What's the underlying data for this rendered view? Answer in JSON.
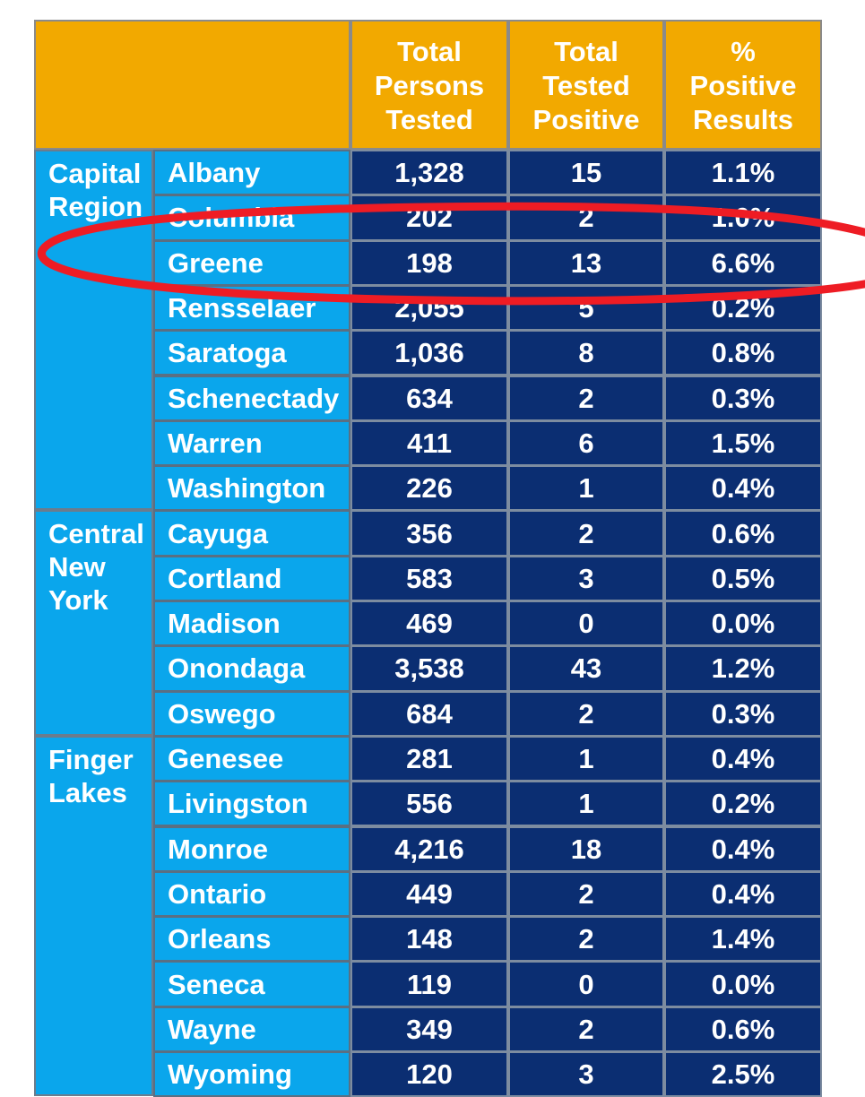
{
  "chart_data": {
    "type": "table",
    "columns": [
      "",
      "",
      "Total Persons Tested",
      "Total Tested Positive",
      "% Positive Results"
    ],
    "header_lines": [
      [
        "Total",
        "Persons",
        "Tested"
      ],
      [
        "Total",
        "Tested",
        "Positive"
      ],
      [
        "%",
        "Positive",
        "Results"
      ]
    ],
    "groups": [
      {
        "region_lines": [
          "Capital",
          "Region"
        ],
        "rows": [
          {
            "county": "Albany",
            "tested": "1,328",
            "positive": "15",
            "pct": "1.1%"
          },
          {
            "county": "Columbia",
            "tested": "202",
            "positive": "2",
            "pct": "1.0%"
          },
          {
            "county": "Greene",
            "tested": "198",
            "positive": "13",
            "pct": "6.6%"
          },
          {
            "county": "Rensselaer",
            "tested": "2,055",
            "positive": "5",
            "pct": "0.2%"
          },
          {
            "county": "Saratoga",
            "tested": "1,036",
            "positive": "8",
            "pct": "0.8%"
          },
          {
            "county": "Schenectady",
            "tested": "634",
            "positive": "2",
            "pct": "0.3%"
          },
          {
            "county": "Warren",
            "tested": "411",
            "positive": "6",
            "pct": "1.5%"
          },
          {
            "county": "Washington",
            "tested": "226",
            "positive": "1",
            "pct": "0.4%"
          }
        ]
      },
      {
        "region_lines": [
          "Central",
          "New",
          "York"
        ],
        "rows": [
          {
            "county": "Cayuga",
            "tested": "356",
            "positive": "2",
            "pct": "0.6%"
          },
          {
            "county": "Cortland",
            "tested": "583",
            "positive": "3",
            "pct": "0.5%"
          },
          {
            "county": "Madison",
            "tested": "469",
            "positive": "0",
            "pct": "0.0%"
          },
          {
            "county": "Onondaga",
            "tested": "3,538",
            "positive": "43",
            "pct": "1.2%"
          },
          {
            "county": "Oswego",
            "tested": "684",
            "positive": "2",
            "pct": "0.3%"
          }
        ]
      },
      {
        "region_lines": [
          "Finger",
          "Lakes"
        ],
        "rows": [
          {
            "county": "Genesee",
            "tested": "281",
            "positive": "1",
            "pct": "0.4%"
          },
          {
            "county": "Livingston",
            "tested": "556",
            "positive": "1",
            "pct": "0.2%"
          },
          {
            "county": "Monroe",
            "tested": "4,216",
            "positive": "18",
            "pct": "0.4%"
          },
          {
            "county": "Ontario",
            "tested": "449",
            "positive": "2",
            "pct": "0.4%"
          },
          {
            "county": "Orleans",
            "tested": "148",
            "positive": "2",
            "pct": "1.4%"
          },
          {
            "county": "Seneca",
            "tested": "119",
            "positive": "0",
            "pct": "0.0%"
          },
          {
            "county": "Wayne",
            "tested": "349",
            "positive": "2",
            "pct": "0.6%"
          },
          {
            "county": "Wyoming",
            "tested": "120",
            "positive": "3",
            "pct": "2.5%"
          }
        ]
      }
    ],
    "annotation": {
      "shape": "red-ellipse",
      "highlighted_row": "Greene",
      "color": "#ee1c24"
    },
    "colors": {
      "header": "#f2a900",
      "region_county": "#0aa6ec",
      "values": "#0b2e72",
      "text": "#ffffff"
    }
  }
}
